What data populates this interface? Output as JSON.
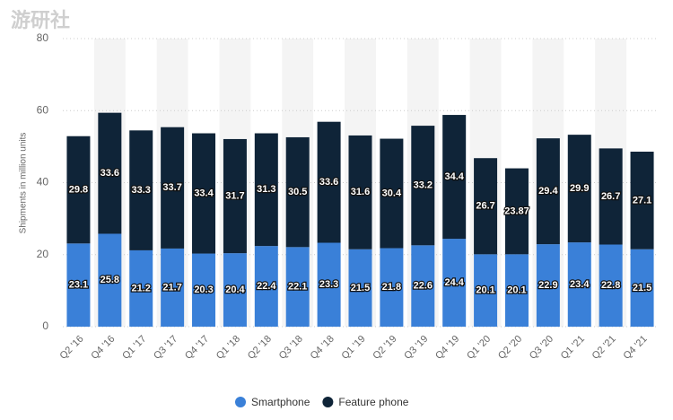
{
  "watermark": "游研社",
  "chart_data": {
    "type": "stacked_bar",
    "y_label": "Shipments in million units",
    "categories": [
      "Q2 '16",
      "Q4 '16",
      "Q1 '17",
      "Q3 '17",
      "Q4 '17",
      "Q1 '18",
      "Q2 '18",
      "Q3 '18",
      "Q4 '18",
      "Q1 '19",
      "Q2 '19",
      "Q3 '19",
      "Q4 '19",
      "Q1 '20",
      "Q2 '20",
      "Q3 '20",
      "Q1 '21",
      "Q2 '21",
      "Q4 '21"
    ],
    "series": [
      {
        "name": "Smartphone",
        "color": "#3a80d8",
        "values": [
          23.1,
          25.8,
          21.2,
          21.7,
          20.3,
          20.4,
          22.4,
          22.1,
          23.3,
          21.5,
          21.8,
          22.6,
          24.4,
          20.1,
          20.1,
          22.9,
          23.4,
          22.8,
          21.5
        ]
      },
      {
        "name": "Feature phone",
        "color": "#0f2438",
        "values": [
          29.8,
          33.6,
          33.3,
          33.7,
          33.4,
          31.7,
          31.3,
          30.5,
          33.6,
          31.6,
          30.4,
          33.2,
          34.4,
          26.7,
          23.87,
          29.4,
          29.9,
          26.7,
          27.1
        ]
      }
    ],
    "ylim": [
      0,
      80
    ],
    "yticks": [
      0,
      20,
      40,
      60,
      80
    ],
    "grid": true,
    "legend": "bottom"
  }
}
